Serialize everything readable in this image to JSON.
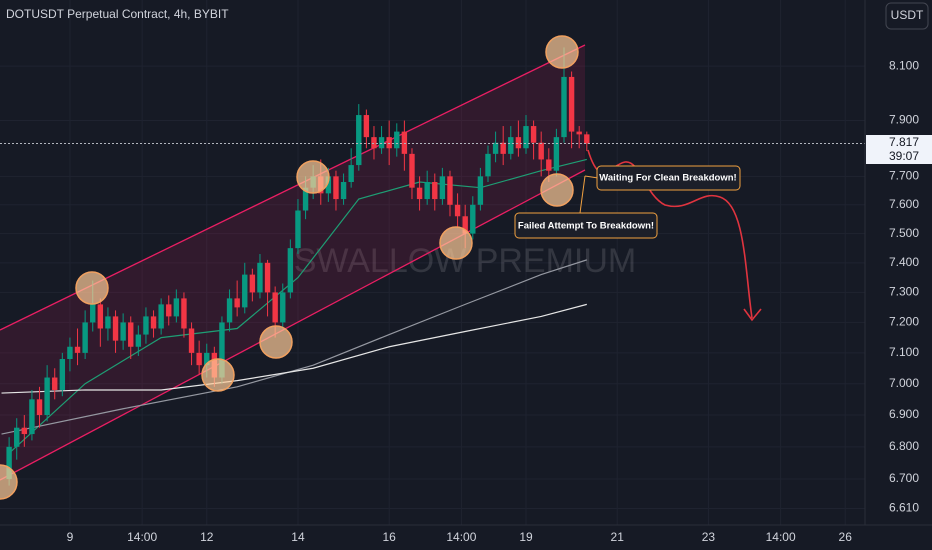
{
  "chart_data": {
    "type": "candlestick",
    "title": "DOTUSDT Perpetual Contract, 4h, BYBIT",
    "currency": "USDT",
    "watermark": "SWALLOW PREMIUM",
    "last_price": {
      "value": 7.817,
      "label": "7.817",
      "countdown": "39:07"
    },
    "annotations": [
      "Waiting For Clean Breakdown!",
      "Failed Attempt To Breakdown!"
    ],
    "log_scale": true,
    "grid": true,
    "up_color": "#089981",
    "down_color": "#f23645",
    "ylim": [
      6.56,
      8.35
    ],
    "yticks": [
      {
        "value": 6.61,
        "label": "6.610"
      },
      {
        "value": 6.7,
        "label": "6.700"
      },
      {
        "value": 6.8,
        "label": "6.800"
      },
      {
        "value": 6.9,
        "label": "6.900"
      },
      {
        "value": 7.0,
        "label": "7.000"
      },
      {
        "value": 7.1,
        "label": "7.100"
      },
      {
        "value": 7.2,
        "label": "7.200"
      },
      {
        "value": 7.3,
        "label": "7.300"
      },
      {
        "value": 7.4,
        "label": "7.400"
      },
      {
        "value": 7.5,
        "label": "7.500"
      },
      {
        "value": 7.6,
        "label": "7.600"
      },
      {
        "value": 7.7,
        "label": "7.700"
      },
      {
        "value": 7.9,
        "label": "7.900"
      },
      {
        "value": 8.1,
        "label": "8.100"
      }
    ],
    "xlim": [
      -1.2,
      112.6
    ],
    "xticks": [
      {
        "value": 8,
        "label": "9"
      },
      {
        "value": 17.5,
        "label": "14:00"
      },
      {
        "value": 26,
        "label": "12"
      },
      {
        "value": 38,
        "label": "14"
      },
      {
        "value": 50,
        "label": "16"
      },
      {
        "value": 59.5,
        "label": "14:00"
      },
      {
        "value": 68,
        "label": "19"
      },
      {
        "value": 80,
        "label": "21"
      },
      {
        "value": 92,
        "label": "23"
      },
      {
        "value": 101.5,
        "label": "14:00"
      },
      {
        "value": 110,
        "label": "26"
      }
    ],
    "ohlc": [
      [
        6.7,
        6.83,
        6.68,
        6.8
      ],
      [
        6.8,
        6.89,
        6.76,
        6.86
      ],
      [
        6.86,
        6.9,
        6.8,
        6.84
      ],
      [
        6.84,
        6.98,
        6.82,
        6.95
      ],
      [
        6.95,
        6.99,
        6.86,
        6.9
      ],
      [
        6.9,
        7.06,
        6.88,
        7.02
      ],
      [
        7.02,
        7.05,
        6.95,
        6.98
      ],
      [
        6.98,
        7.1,
        6.96,
        7.08
      ],
      [
        7.08,
        7.15,
        7.04,
        7.12
      ],
      [
        7.12,
        7.18,
        7.06,
        7.1
      ],
      [
        7.1,
        7.24,
        7.08,
        7.2
      ],
      [
        7.2,
        7.34,
        7.17,
        7.26
      ],
      [
        7.26,
        7.28,
        7.12,
        7.18
      ],
      [
        7.18,
        7.25,
        7.14,
        7.22
      ],
      [
        7.22,
        7.24,
        7.1,
        7.14
      ],
      [
        7.14,
        7.23,
        7.11,
        7.2
      ],
      [
        7.2,
        7.22,
        7.08,
        7.12
      ],
      [
        7.12,
        7.19,
        7.09,
        7.16
      ],
      [
        7.16,
        7.25,
        7.13,
        7.22
      ],
      [
        7.22,
        7.24,
        7.15,
        7.18
      ],
      [
        7.18,
        7.28,
        7.16,
        7.26
      ],
      [
        7.26,
        7.29,
        7.19,
        7.22
      ],
      [
        7.22,
        7.31,
        7.2,
        7.28
      ],
      [
        7.28,
        7.3,
        7.15,
        7.18
      ],
      [
        7.18,
        7.2,
        7.06,
        7.1
      ],
      [
        7.1,
        7.14,
        7.03,
        7.06
      ],
      [
        7.06,
        7.13,
        7.02,
        7.1
      ],
      [
        7.1,
        7.12,
        6.99,
        7.02
      ],
      [
        7.02,
        7.22,
        7.0,
        7.2
      ],
      [
        7.2,
        7.31,
        7.17,
        7.28
      ],
      [
        7.28,
        7.34,
        7.22,
        7.25
      ],
      [
        7.25,
        7.4,
        7.23,
        7.36
      ],
      [
        7.36,
        7.38,
        7.27,
        7.3
      ],
      [
        7.3,
        7.43,
        7.28,
        7.4
      ],
      [
        7.4,
        7.41,
        7.22,
        7.3
      ],
      [
        7.3,
        7.32,
        7.15,
        7.2
      ],
      [
        7.2,
        7.33,
        7.18,
        7.3
      ],
      [
        7.3,
        7.48,
        7.28,
        7.45
      ],
      [
        7.45,
        7.62,
        7.43,
        7.58
      ],
      [
        7.58,
        7.7,
        7.55,
        7.66
      ],
      [
        7.66,
        7.74,
        7.62,
        7.7
      ],
      [
        7.7,
        7.76,
        7.6,
        7.64
      ],
      [
        7.64,
        7.73,
        7.61,
        7.7
      ],
      [
        7.7,
        7.72,
        7.58,
        7.62
      ],
      [
        7.62,
        7.71,
        7.6,
        7.68
      ],
      [
        7.68,
        7.8,
        7.66,
        7.74
      ],
      [
        7.74,
        7.96,
        7.72,
        7.92
      ],
      [
        7.92,
        7.94,
        7.8,
        7.84
      ],
      [
        7.84,
        7.88,
        7.76,
        7.8
      ],
      [
        7.8,
        7.88,
        7.78,
        7.84
      ],
      [
        7.84,
        7.9,
        7.74,
        7.8
      ],
      [
        7.8,
        7.89,
        7.77,
        7.86
      ],
      [
        7.86,
        7.9,
        7.72,
        7.78
      ],
      [
        7.78,
        7.8,
        7.62,
        7.66
      ],
      [
        7.66,
        7.7,
        7.58,
        7.62
      ],
      [
        7.62,
        7.72,
        7.6,
        7.68
      ],
      [
        7.68,
        7.71,
        7.58,
        7.62
      ],
      [
        7.62,
        7.73,
        7.6,
        7.7
      ],
      [
        7.7,
        7.72,
        7.56,
        7.6
      ],
      [
        7.6,
        7.64,
        7.52,
        7.56
      ],
      [
        7.56,
        7.6,
        7.45,
        7.5
      ],
      [
        7.5,
        7.63,
        7.48,
        7.6
      ],
      [
        7.6,
        7.73,
        7.58,
        7.7
      ],
      [
        7.7,
        7.81,
        7.68,
        7.78
      ],
      [
        7.78,
        7.86,
        7.75,
        7.82
      ],
      [
        7.82,
        7.88,
        7.74,
        7.78
      ],
      [
        7.78,
        7.88,
        7.76,
        7.84
      ],
      [
        7.84,
        7.9,
        7.77,
        7.8
      ],
      [
        7.8,
        7.92,
        7.78,
        7.88
      ],
      [
        7.88,
        7.9,
        7.76,
        7.82
      ],
      [
        7.82,
        7.86,
        7.7,
        7.76
      ],
      [
        7.76,
        7.8,
        7.68,
        7.72
      ],
      [
        7.72,
        7.87,
        7.7,
        7.84
      ],
      [
        7.84,
        8.17,
        7.82,
        8.06
      ],
      [
        8.06,
        8.08,
        7.8,
        7.86
      ],
      [
        7.86,
        7.88,
        7.8,
        7.85
      ],
      [
        7.85,
        7.86,
        7.79,
        7.817
      ]
    ],
    "overlays": [
      {
        "color": "#1e9e74",
        "x": [
          0,
          10,
          20,
          30,
          38,
          46,
          54,
          62,
          70,
          76
        ],
        "values": [
          6.78,
          7.0,
          7.15,
          7.18,
          7.35,
          7.62,
          7.68,
          7.66,
          7.72,
          7.76
        ]
      },
      {
        "color": "#9598a1",
        "x": [
          -1,
          15,
          30,
          40,
          50,
          60,
          70,
          76
        ],
        "values": [
          6.84,
          6.92,
          6.99,
          7.06,
          7.16,
          7.26,
          7.36,
          7.41
        ]
      },
      {
        "color": "#e6e6e6",
        "x": [
          -1,
          10,
          20,
          30,
          40,
          50,
          60,
          70,
          76
        ],
        "values": [
          6.97,
          6.98,
          6.98,
          7.01,
          7.05,
          7.12,
          7.17,
          7.22,
          7.26
        ]
      }
    ]
  }
}
